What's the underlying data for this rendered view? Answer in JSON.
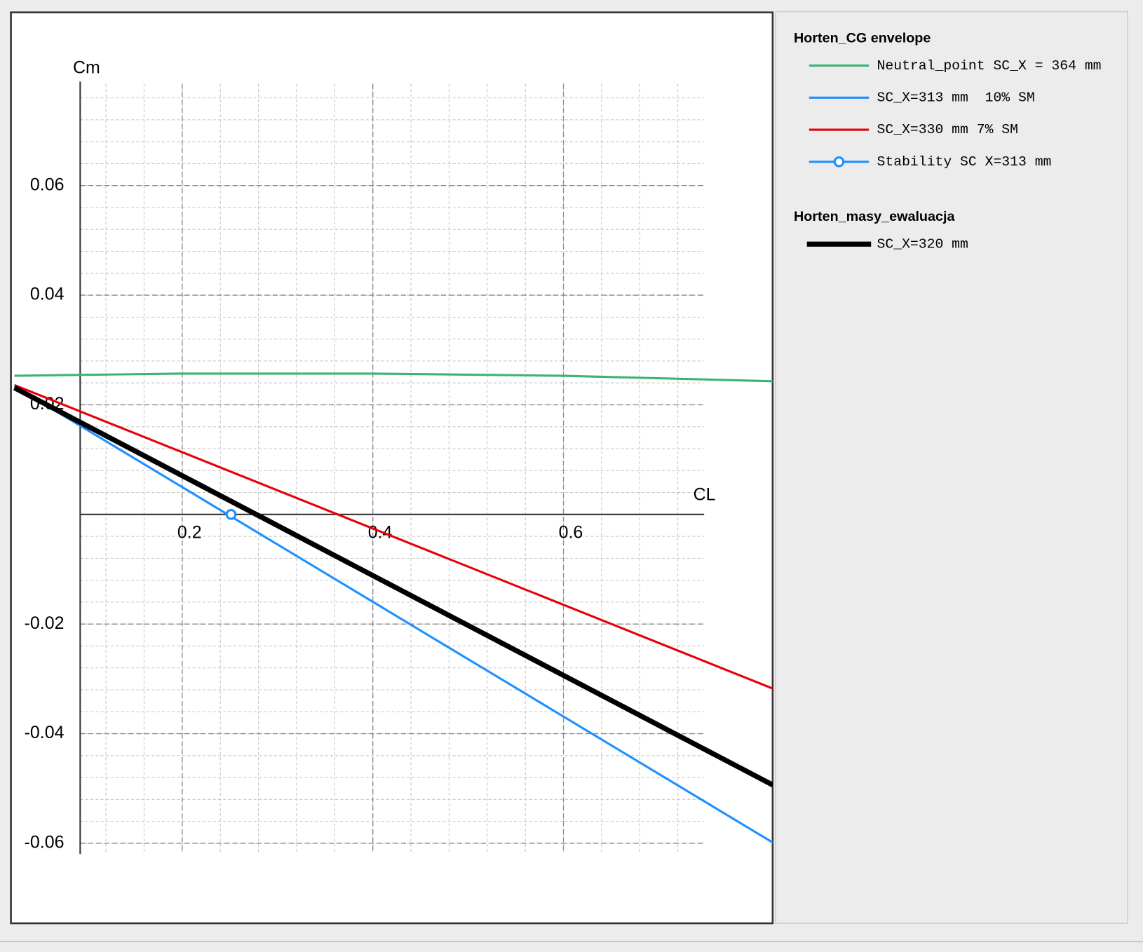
{
  "chart_data": {
    "type": "line",
    "x_label": "CL",
    "y_label": "Cm",
    "xlim": [
      0.0203,
      0.8195
    ],
    "ylim": [
      -0.0746,
      0.0916
    ],
    "xticks": [
      0.2,
      0.4,
      0.6
    ],
    "yticks": [
      -0.06,
      -0.04,
      -0.02,
      0.02,
      0.04,
      0.06
    ],
    "grid": true,
    "groups": [
      {
        "name": "Horten_CG envelope",
        "series": [
          {
            "name": "Neutral_point SC_X = 364 mm",
            "color": "#3cb371",
            "x": [
              0.024,
              0.2,
              0.4,
              0.6,
              0.82
            ],
            "values": [
              0.0253,
              0.0257,
              0.0257,
              0.0253,
              0.0243
            ]
          },
          {
            "name": "SC_X=313 mm  10% SM",
            "color": "#1e90ff",
            "x": [
              0.024,
              0.82
            ],
            "values": [
              0.0234,
              -0.0599
            ]
          },
          {
            "name": "SC_X=330 mm 7% SM",
            "color": "#e8000b",
            "x": [
              0.024,
              0.82
            ],
            "values": [
              0.0236,
              -0.0318
            ]
          },
          {
            "name": "Stability SC X=313 mm",
            "color": "#1e90ff",
            "marker": true,
            "x": [
              0.2512
            ],
            "values": [
              0
            ]
          }
        ]
      },
      {
        "name": "Horten_masy_ewaluacja",
        "series": [
          {
            "name": "SC_X=320 mm",
            "color": "#000000",
            "width": 7,
            "x": [
              0.024,
              0.82
            ],
            "values": [
              0.0231,
              -0.0494
            ]
          }
        ]
      }
    ]
  }
}
